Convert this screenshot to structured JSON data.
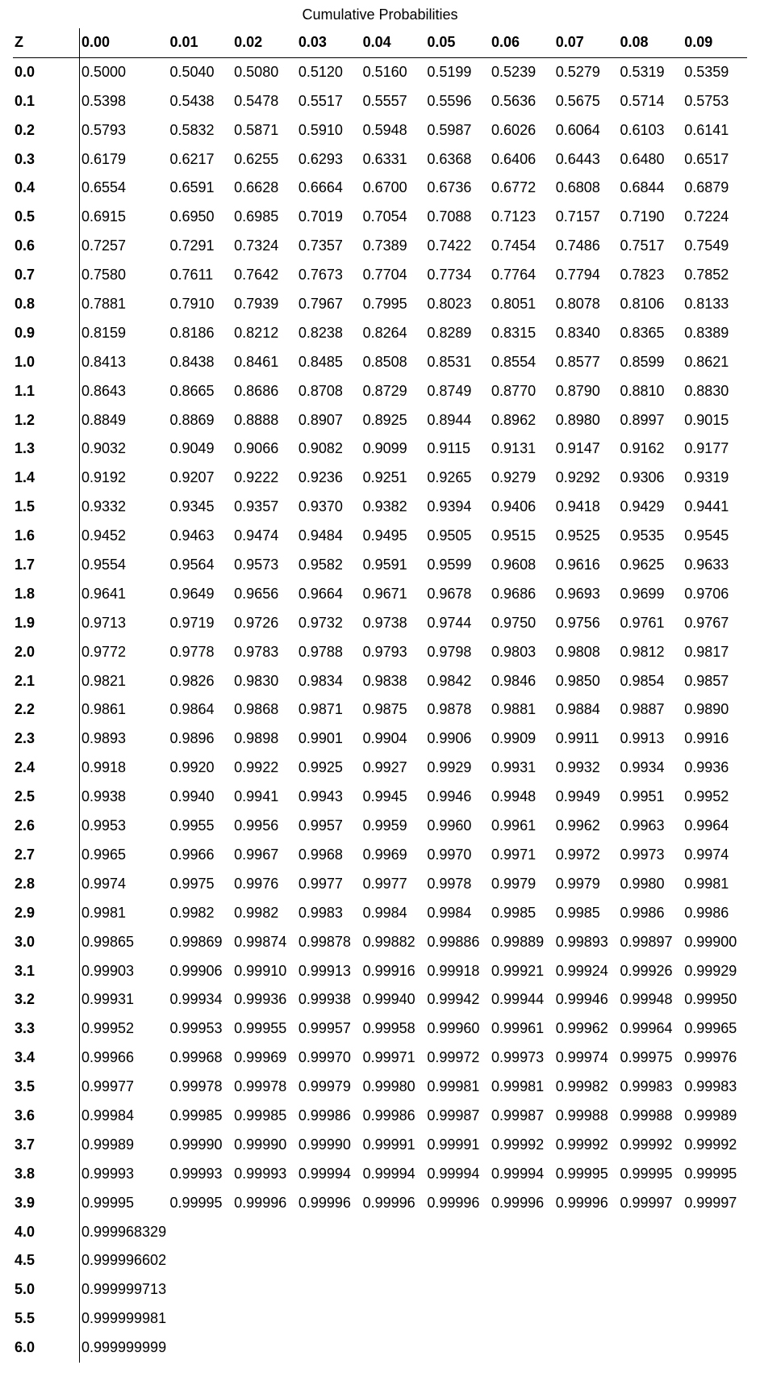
{
  "title": "Cumulative Probabilities",
  "columns": [
    "Z",
    "0.00",
    "0.01",
    "0.02",
    "0.03",
    "0.04",
    "0.05",
    "0.06",
    "0.07",
    "0.08",
    "0.09"
  ],
  "rows": [
    {
      "z": "0.0",
      "v": [
        "0.5000",
        "0.5040",
        "0.5080",
        "0.5120",
        "0.5160",
        "0.5199",
        "0.5239",
        "0.5279",
        "0.5319",
        "0.5359"
      ]
    },
    {
      "z": "0.1",
      "v": [
        "0.5398",
        "0.5438",
        "0.5478",
        "0.5517",
        "0.5557",
        "0.5596",
        "0.5636",
        "0.5675",
        "0.5714",
        "0.5753"
      ]
    },
    {
      "z": "0.2",
      "v": [
        "0.5793",
        "0.5832",
        "0.5871",
        "0.5910",
        "0.5948",
        "0.5987",
        "0.6026",
        "0.6064",
        "0.6103",
        "0.6141"
      ]
    },
    {
      "z": "0.3",
      "v": [
        "0.6179",
        "0.6217",
        "0.6255",
        "0.6293",
        "0.6331",
        "0.6368",
        "0.6406",
        "0.6443",
        "0.6480",
        "0.6517"
      ]
    },
    {
      "z": "0.4",
      "v": [
        "0.6554",
        "0.6591",
        "0.6628",
        "0.6664",
        "0.6700",
        "0.6736",
        "0.6772",
        "0.6808",
        "0.6844",
        "0.6879"
      ]
    },
    {
      "z": "0.5",
      "v": [
        "0.6915",
        "0.6950",
        "0.6985",
        "0.7019",
        "0.7054",
        "0.7088",
        "0.7123",
        "0.7157",
        "0.7190",
        "0.7224"
      ]
    },
    {
      "z": "0.6",
      "v": [
        "0.7257",
        "0.7291",
        "0.7324",
        "0.7357",
        "0.7389",
        "0.7422",
        "0.7454",
        "0.7486",
        "0.7517",
        "0.7549"
      ]
    },
    {
      "z": "0.7",
      "v": [
        "0.7580",
        "0.7611",
        "0.7642",
        "0.7673",
        "0.7704",
        "0.7734",
        "0.7764",
        "0.7794",
        "0.7823",
        "0.7852"
      ]
    },
    {
      "z": "0.8",
      "v": [
        "0.7881",
        "0.7910",
        "0.7939",
        "0.7967",
        "0.7995",
        "0.8023",
        "0.8051",
        "0.8078",
        "0.8106",
        "0.8133"
      ]
    },
    {
      "z": "0.9",
      "v": [
        "0.8159",
        "0.8186",
        "0.8212",
        "0.8238",
        "0.8264",
        "0.8289",
        "0.8315",
        "0.8340",
        "0.8365",
        "0.8389"
      ]
    },
    {
      "z": "1.0",
      "v": [
        "0.8413",
        "0.8438",
        "0.8461",
        "0.8485",
        "0.8508",
        "0.8531",
        "0.8554",
        "0.8577",
        "0.8599",
        "0.8621"
      ]
    },
    {
      "z": "1.1",
      "v": [
        "0.8643",
        "0.8665",
        "0.8686",
        "0.8708",
        "0.8729",
        "0.8749",
        "0.8770",
        "0.8790",
        "0.8810",
        "0.8830"
      ]
    },
    {
      "z": "1.2",
      "v": [
        "0.8849",
        "0.8869",
        "0.8888",
        "0.8907",
        "0.8925",
        "0.8944",
        "0.8962",
        "0.8980",
        "0.8997",
        "0.9015"
      ]
    },
    {
      "z": "1.3",
      "v": [
        "0.9032",
        "0.9049",
        "0.9066",
        "0.9082",
        "0.9099",
        "0.9115",
        "0.9131",
        "0.9147",
        "0.9162",
        "0.9177"
      ]
    },
    {
      "z": "1.4",
      "v": [
        "0.9192",
        "0.9207",
        "0.9222",
        "0.9236",
        "0.9251",
        "0.9265",
        "0.9279",
        "0.9292",
        "0.9306",
        "0.9319"
      ]
    },
    {
      "z": "1.5",
      "v": [
        "0.9332",
        "0.9345",
        "0.9357",
        "0.9370",
        "0.9382",
        "0.9394",
        "0.9406",
        "0.9418",
        "0.9429",
        "0.9441"
      ]
    },
    {
      "z": "1.6",
      "v": [
        "0.9452",
        "0.9463",
        "0.9474",
        "0.9484",
        "0.9495",
        "0.9505",
        "0.9515",
        "0.9525",
        "0.9535",
        "0.9545"
      ]
    },
    {
      "z": "1.7",
      "v": [
        "0.9554",
        "0.9564",
        "0.9573",
        "0.9582",
        "0.9591",
        "0.9599",
        "0.9608",
        "0.9616",
        "0.9625",
        "0.9633"
      ]
    },
    {
      "z": "1.8",
      "v": [
        "0.9641",
        "0.9649",
        "0.9656",
        "0.9664",
        "0.9671",
        "0.9678",
        "0.9686",
        "0.9693",
        "0.9699",
        "0.9706"
      ]
    },
    {
      "z": "1.9",
      "v": [
        "0.9713",
        "0.9719",
        "0.9726",
        "0.9732",
        "0.9738",
        "0.9744",
        "0.9750",
        "0.9756",
        "0.9761",
        "0.9767"
      ]
    },
    {
      "z": "2.0",
      "v": [
        "0.9772",
        "0.9778",
        "0.9783",
        "0.9788",
        "0.9793",
        "0.9798",
        "0.9803",
        "0.9808",
        "0.9812",
        "0.9817"
      ]
    },
    {
      "z": "2.1",
      "v": [
        "0.9821",
        "0.9826",
        "0.9830",
        "0.9834",
        "0.9838",
        "0.9842",
        "0.9846",
        "0.9850",
        "0.9854",
        "0.9857"
      ]
    },
    {
      "z": "2.2",
      "v": [
        "0.9861",
        "0.9864",
        "0.9868",
        "0.9871",
        "0.9875",
        "0.9878",
        "0.9881",
        "0.9884",
        "0.9887",
        "0.9890"
      ]
    },
    {
      "z": "2.3",
      "v": [
        "0.9893",
        "0.9896",
        "0.9898",
        "0.9901",
        "0.9904",
        "0.9906",
        "0.9909",
        "0.9911",
        "0.9913",
        "0.9916"
      ]
    },
    {
      "z": "2.4",
      "v": [
        "0.9918",
        "0.9920",
        "0.9922",
        "0.9925",
        "0.9927",
        "0.9929",
        "0.9931",
        "0.9932",
        "0.9934",
        "0.9936"
      ]
    },
    {
      "z": "2.5",
      "v": [
        "0.9938",
        "0.9940",
        "0.9941",
        "0.9943",
        "0.9945",
        "0.9946",
        "0.9948",
        "0.9949",
        "0.9951",
        "0.9952"
      ]
    },
    {
      "z": "2.6",
      "v": [
        "0.9953",
        "0.9955",
        "0.9956",
        "0.9957",
        "0.9959",
        "0.9960",
        "0.9961",
        "0.9962",
        "0.9963",
        "0.9964"
      ]
    },
    {
      "z": "2.7",
      "v": [
        "0.9965",
        "0.9966",
        "0.9967",
        "0.9968",
        "0.9969",
        "0.9970",
        "0.9971",
        "0.9972",
        "0.9973",
        "0.9974"
      ]
    },
    {
      "z": "2.8",
      "v": [
        "0.9974",
        "0.9975",
        "0.9976",
        "0.9977",
        "0.9977",
        "0.9978",
        "0.9979",
        "0.9979",
        "0.9980",
        "0.9981"
      ]
    },
    {
      "z": "2.9",
      "v": [
        "0.9981",
        "0.9982",
        "0.9982",
        "0.9983",
        "0.9984",
        "0.9984",
        "0.9985",
        "0.9985",
        "0.9986",
        "0.9986"
      ]
    },
    {
      "z": "3.0",
      "v": [
        "0.99865",
        "0.99869",
        "0.99874",
        "0.99878",
        "0.99882",
        "0.99886",
        "0.99889",
        "0.99893",
        "0.99897",
        "0.99900"
      ]
    },
    {
      "z": "3.1",
      "v": [
        "0.99903",
        "0.99906",
        "0.99910",
        "0.99913",
        "0.99916",
        "0.99918",
        "0.99921",
        "0.99924",
        "0.99926",
        "0.99929"
      ]
    },
    {
      "z": "3.2",
      "v": [
        "0.99931",
        "0.99934",
        "0.99936",
        "0.99938",
        "0.99940",
        "0.99942",
        "0.99944",
        "0.99946",
        "0.99948",
        "0.99950"
      ]
    },
    {
      "z": "3.3",
      "v": [
        "0.99952",
        "0.99953",
        "0.99955",
        "0.99957",
        "0.99958",
        "0.99960",
        "0.99961",
        "0.99962",
        "0.99964",
        "0.99965"
      ]
    },
    {
      "z": "3.4",
      "v": [
        "0.99966",
        "0.99968",
        "0.99969",
        "0.99970",
        "0.99971",
        "0.99972",
        "0.99973",
        "0.99974",
        "0.99975",
        "0.99976"
      ]
    },
    {
      "z": "3.5",
      "v": [
        "0.99977",
        "0.99978",
        "0.99978",
        "0.99979",
        "0.99980",
        "0.99981",
        "0.99981",
        "0.99982",
        "0.99983",
        "0.99983"
      ]
    },
    {
      "z": "3.6",
      "v": [
        "0.99984",
        "0.99985",
        "0.99985",
        "0.99986",
        "0.99986",
        "0.99987",
        "0.99987",
        "0.99988",
        "0.99988",
        "0.99989"
      ]
    },
    {
      "z": "3.7",
      "v": [
        "0.99989",
        "0.99990",
        "0.99990",
        "0.99990",
        "0.99991",
        "0.99991",
        "0.99992",
        "0.99992",
        "0.99992",
        "0.99992"
      ]
    },
    {
      "z": "3.8",
      "v": [
        "0.99993",
        "0.99993",
        "0.99993",
        "0.99994",
        "0.99994",
        "0.99994",
        "0.99994",
        "0.99995",
        "0.99995",
        "0.99995"
      ]
    },
    {
      "z": "3.9",
      "v": [
        "0.99995",
        "0.99995",
        "0.99996",
        "0.99996",
        "0.99996",
        "0.99996",
        "0.99996",
        "0.99996",
        "0.99997",
        "0.99997"
      ]
    },
    {
      "z": "4.0",
      "v": [
        "0.999968329",
        "",
        "",
        "",
        "",
        "",
        "",
        "",
        "",
        ""
      ]
    },
    {
      "z": "4.5",
      "v": [
        "0.999996602",
        "",
        "",
        "",
        "",
        "",
        "",
        "",
        "",
        ""
      ]
    },
    {
      "z": "5.0",
      "v": [
        "0.999999713",
        "",
        "",
        "",
        "",
        "",
        "",
        "",
        "",
        ""
      ]
    },
    {
      "z": "5.5",
      "v": [
        "0.999999981",
        "",
        "",
        "",
        "",
        "",
        "",
        "",
        "",
        ""
      ]
    },
    {
      "z": "6.0",
      "v": [
        "0.999999999",
        "",
        "",
        "",
        "",
        "",
        "",
        "",
        "",
        ""
      ]
    }
  ]
}
